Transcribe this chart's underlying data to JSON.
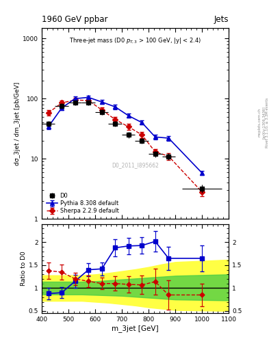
{
  "title_top": "1960 GeV ppbar",
  "title_right": "Jets",
  "watermark": "D0_2011_I895662",
  "rivet_text": "Rivet 3.1.10, ≥ 3.3M events",
  "arxiv_text": "[arXiv:1306.3436]",
  "mcplots_text": "mcplots.cern.ch",
  "xlabel": "m_3jet [GeV]",
  "ylabel": "dσ_3jet / dm_3jet [pb/GeV]",
  "ylabel_ratio": "Ratio to D0",
  "main_xlim": [
    400,
    1100
  ],
  "main_ylim_log": [
    1.0,
    1500
  ],
  "ratio_ylim": [
    0.45,
    2.4
  ],
  "ratio_yticks": [
    0.5,
    1.0,
    1.5,
    2.0
  ],
  "d0_x": [
    425,
    475,
    525,
    575,
    625,
    675,
    725,
    775,
    825,
    875,
    1000
  ],
  "d0_y": [
    38,
    76,
    85,
    86,
    60,
    38,
    25,
    20,
    12,
    11,
    3.2
  ],
  "d0_yerr": [
    4,
    7,
    8,
    8,
    6,
    4,
    3,
    2,
    1.5,
    1.5,
    0.5
  ],
  "d0_xerr": [
    25,
    25,
    25,
    25,
    25,
    25,
    25,
    25,
    25,
    25,
    75
  ],
  "pythia_x": [
    425,
    475,
    525,
    575,
    625,
    675,
    725,
    775,
    825,
    875,
    1000
  ],
  "pythia_y": [
    34,
    70,
    100,
    105,
    88,
    73,
    52,
    40,
    23,
    22,
    5.8
  ],
  "pythia_yerr": [
    3,
    6,
    8,
    8,
    7,
    6,
    4,
    3,
    2,
    2,
    0.5
  ],
  "sherpa_x": [
    425,
    475,
    525,
    575,
    625,
    675,
    725,
    775,
    825,
    875,
    1000
  ],
  "sherpa_y": [
    58,
    85,
    95,
    93,
    65,
    45,
    34,
    25,
    13,
    11,
    2.8
  ],
  "sherpa_yerr": [
    6,
    8,
    9,
    8,
    6,
    5,
    4,
    3,
    1.5,
    1.5,
    0.4
  ],
  "ratio_pythia_x": [
    425,
    475,
    525,
    575,
    625,
    675,
    725,
    775,
    825,
    875,
    1000
  ],
  "ratio_pythia_y": [
    0.88,
    0.9,
    1.15,
    1.4,
    1.42,
    1.88,
    1.92,
    1.93,
    2.02,
    1.65,
    1.65
  ],
  "ratio_pythia_yerr": [
    0.13,
    0.12,
    0.14,
    0.14,
    0.14,
    0.18,
    0.18,
    0.18,
    0.22,
    0.25,
    0.28
  ],
  "ratio_sherpa_x": [
    425,
    475,
    525,
    575,
    625,
    675,
    725,
    775,
    825,
    875,
    1000
  ],
  "ratio_sherpa_y": [
    1.38,
    1.35,
    1.2,
    1.15,
    1.1,
    1.1,
    1.08,
    1.07,
    1.14,
    0.85,
    0.85
  ],
  "ratio_sherpa_yerr": [
    0.18,
    0.16,
    0.14,
    0.13,
    0.13,
    0.16,
    0.18,
    0.2,
    0.28,
    0.32,
    0.25
  ],
  "band_yellow_x": [
    400,
    450,
    500,
    550,
    600,
    650,
    700,
    750,
    800,
    850,
    900,
    1100
  ],
  "band_yellow_lo": [
    0.72,
    0.72,
    0.72,
    0.72,
    0.7,
    0.68,
    0.65,
    0.62,
    0.58,
    0.55,
    0.52,
    0.5
  ],
  "band_yellow_hi": [
    1.28,
    1.28,
    1.28,
    1.28,
    1.3,
    1.33,
    1.37,
    1.41,
    1.46,
    1.52,
    1.57,
    1.62
  ],
  "band_green_x": [
    400,
    450,
    500,
    550,
    600,
    650,
    700,
    750,
    800,
    850,
    900,
    1100
  ],
  "band_green_lo": [
    0.86,
    0.86,
    0.86,
    0.86,
    0.85,
    0.84,
    0.83,
    0.81,
    0.79,
    0.77,
    0.75,
    0.73
  ],
  "band_green_hi": [
    1.14,
    1.14,
    1.14,
    1.14,
    1.15,
    1.17,
    1.19,
    1.21,
    1.23,
    1.25,
    1.27,
    1.3
  ],
  "color_d0": "#000000",
  "color_pythia": "#0000cc",
  "color_sherpa": "#cc0000",
  "color_yellow": "#ffff44",
  "color_green": "#44cc44"
}
